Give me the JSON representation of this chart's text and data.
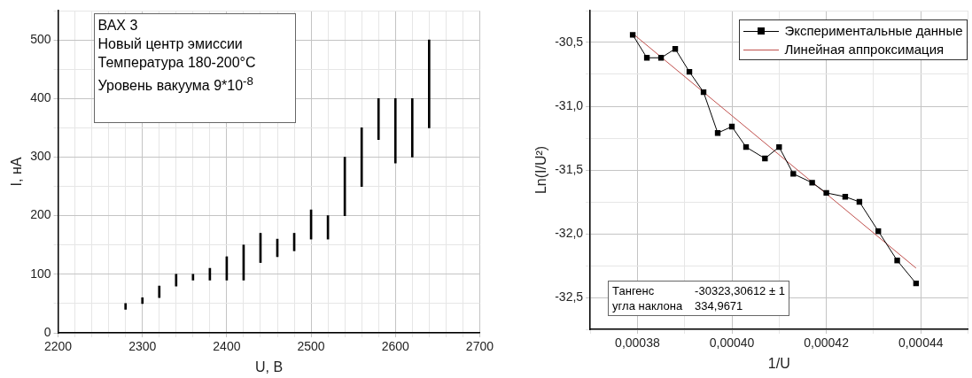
{
  "chart_data": [
    {
      "type": "bar",
      "annotations": [
        "ВАХ 3",
        "Новый центр эмиссии",
        "Температура 180-200°C",
        "Уровень вакуума 9*10$^{-8}$"
      ],
      "xlabel": "U, В",
      "ylabel": "I, нА",
      "x": [
        2280,
        2300,
        2320,
        2340,
        2360,
        2380,
        2400,
        2420,
        2440,
        2460,
        2480,
        2500,
        2520,
        2540,
        2560,
        2580,
        2600,
        2620,
        2640
      ],
      "base": [
        40,
        50,
        60,
        80,
        90,
        90,
        90,
        90,
        120,
        130,
        140,
        160,
        160,
        200,
        250,
        330,
        290,
        300,
        350
      ],
      "values": [
        10,
        10,
        20,
        20,
        10,
        20,
        40,
        60,
        50,
        30,
        30,
        50,
        40,
        100,
        100,
        70,
        110,
        100,
        150
      ],
      "color": "#000000",
      "xlim": [
        2200,
        2700
      ],
      "xticks": [
        2200,
        {
          "value": 2220,
          "label": null
        },
        {
          "value": 2240,
          "label": null
        },
        {
          "value": 2260,
          "label": null
        },
        {
          "value": 2280,
          "label": null
        },
        2300,
        {
          "value": 2320,
          "label": null
        },
        {
          "value": 2340,
          "label": null
        },
        {
          "value": 2360,
          "label": null
        },
        {
          "value": 2380,
          "label": null
        },
        2400,
        {
          "value": 2420,
          "label": null
        },
        {
          "value": 2440,
          "label": null
        },
        {
          "value": 2460,
          "label": null
        },
        {
          "value": 2480,
          "label": null
        },
        2500,
        {
          "value": 2520,
          "label": null
        },
        {
          "value": 2540,
          "label": null
        },
        {
          "value": 2560,
          "label": null
        },
        {
          "value": 2580,
          "label": null
        },
        2600,
        {
          "value": 2620,
          "label": null
        },
        {
          "value": 2640,
          "label": null
        },
        {
          "value": 2660,
          "label": null
        },
        {
          "value": 2680,
          "label": null
        },
        2700
      ],
      "ylim": [
        0,
        550
      ],
      "yticks": [
        0,
        {
          "value": 50,
          "label": null
        },
        100,
        {
          "value": 150,
          "label": null
        },
        200,
        {
          "value": 250,
          "label": null
        },
        300,
        {
          "value": 350,
          "label": null
        },
        400,
        {
          "value": 450,
          "label": null
        },
        500,
        {
          "value": 550,
          "label": null
        }
      ],
      "grid": true
    },
    {
      "type": "line",
      "xlabel": "1/U",
      "ylabel": "Ln(I/U²)",
      "legend": "top right",
      "grid": true,
      "annotations": [
        "Тангенс",
        "-30323,30612 ± 1",
        "угла наклона",
        "334,9671"
      ],
      "series": [
        {
          "name": "Экспериментальные данные",
          "color": "#000000",
          "marker": "square",
          "x": [
            0.000379,
            0.000382,
            0.000385,
            0.000388,
            0.000391,
            0.000394,
            0.000397,
            0.0004,
            0.000403,
            0.000407,
            0.00041,
            0.000413,
            0.000417,
            0.00042,
            0.000424,
            0.000427,
            0.000431,
            0.000435,
            0.000439
          ],
          "values": [
            -30.44,
            -30.62,
            -30.62,
            -30.55,
            -30.73,
            -30.89,
            -31.21,
            -31.16,
            -31.32,
            -31.41,
            -31.32,
            -31.53,
            -31.6,
            -31.68,
            -31.71,
            -31.75,
            -31.98,
            -32.21,
            -32.39
          ]
        },
        {
          "name": "Линейная аппроксимация",
          "color": "#c0504d",
          "marker": "none",
          "x": [
            0.000379,
            0.000439
          ],
          "values": [
            -30.43,
            -32.27
          ]
        }
      ],
      "xlim": [
        0.00037,
        0.00045
      ],
      "xticks": [
        {
          "value": 0.00037,
          "label": null
        },
        {
          "value": 0.00038,
          "label": "0,00038"
        },
        {
          "value": 0.00039,
          "label": null
        },
        {
          "value": 0.0004,
          "label": "0,00040"
        },
        {
          "value": 0.00041,
          "label": null
        },
        {
          "value": 0.00042,
          "label": "0,00042"
        },
        {
          "value": 0.00043,
          "label": null
        },
        {
          "value": 0.00044,
          "label": "0,00044"
        },
        {
          "value": 0.00045,
          "label": null
        }
      ],
      "ylim": [
        -32.75,
        -30.25
      ],
      "yticks": [
        {
          "value": -32.75,
          "label": null
        },
        {
          "value": -32.5,
          "label": "-32,5"
        },
        {
          "value": -32.25,
          "label": null
        },
        {
          "value": -32,
          "label": "-32,0"
        },
        {
          "value": -31.75,
          "label": null
        },
        {
          "value": -31.5,
          "label": "-31,5"
        },
        {
          "value": -31.25,
          "label": null
        },
        {
          "value": -31,
          "label": "-31,0"
        },
        {
          "value": -30.75,
          "label": null
        },
        {
          "value": -30.5,
          "label": "-30,5"
        },
        {
          "value": -30.25,
          "label": null
        }
      ]
    }
  ]
}
